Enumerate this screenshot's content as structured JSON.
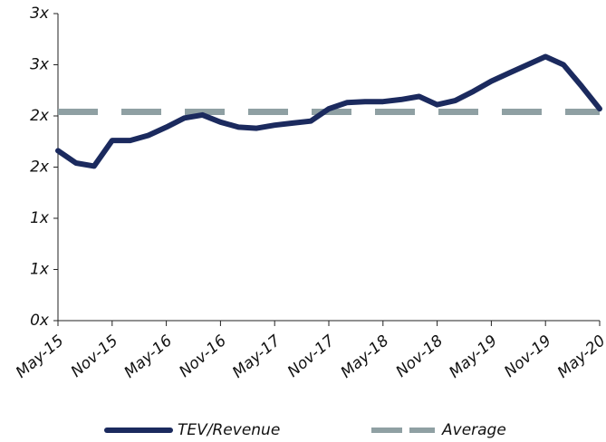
{
  "chart_data": {
    "type": "line",
    "categories": [
      "May-15",
      null,
      null,
      "Nov-15",
      null,
      null,
      "May-16",
      null,
      null,
      "Nov-16",
      null,
      null,
      "May-17",
      null,
      null,
      "Nov-17",
      null,
      null,
      "May-18",
      null,
      null,
      "Nov-18",
      null,
      null,
      "May-19",
      null,
      null,
      "Nov-19",
      null,
      null,
      "May-20"
    ],
    "series": [
      {
        "name": "TEV/Revenue",
        "color": "#1b2a5e",
        "values": [
          1.66,
          1.54,
          1.51,
          1.76,
          1.76,
          1.81,
          1.89,
          1.98,
          2.01,
          1.94,
          1.89,
          1.88,
          1.91,
          1.93,
          1.95,
          2.07,
          2.13,
          2.14,
          2.14,
          2.16,
          2.19,
          2.11,
          2.15,
          2.24,
          2.34,
          2.42,
          2.5,
          2.58,
          2.5,
          2.29,
          2.07
        ]
      },
      {
        "name": "Average",
        "color": "#8fa0a3",
        "dashed": true,
        "values": [
          2.04,
          2.04,
          2.04,
          2.04,
          2.04,
          2.04,
          2.04,
          2.04,
          2.04,
          2.04,
          2.04,
          2.04,
          2.04,
          2.04,
          2.04,
          2.04,
          2.04,
          2.04,
          2.04,
          2.04,
          2.04,
          2.04,
          2.04,
          2.04,
          2.04,
          2.04,
          2.04,
          2.04,
          2.04,
          2.04,
          2.04
        ]
      }
    ],
    "ylim": [
      0,
      3
    ],
    "yticks": [
      {
        "value": 0,
        "label": "0x"
      },
      {
        "value": 0.5,
        "label": "1x"
      },
      {
        "value": 1,
        "label": "1x"
      },
      {
        "value": 1.5,
        "label": "2x"
      },
      {
        "value": 2,
        "label": "2x"
      },
      {
        "value": 2.5,
        "label": "3x"
      },
      {
        "value": 3,
        "label": "3x"
      }
    ],
    "grid": false,
    "legend": "bottom"
  }
}
